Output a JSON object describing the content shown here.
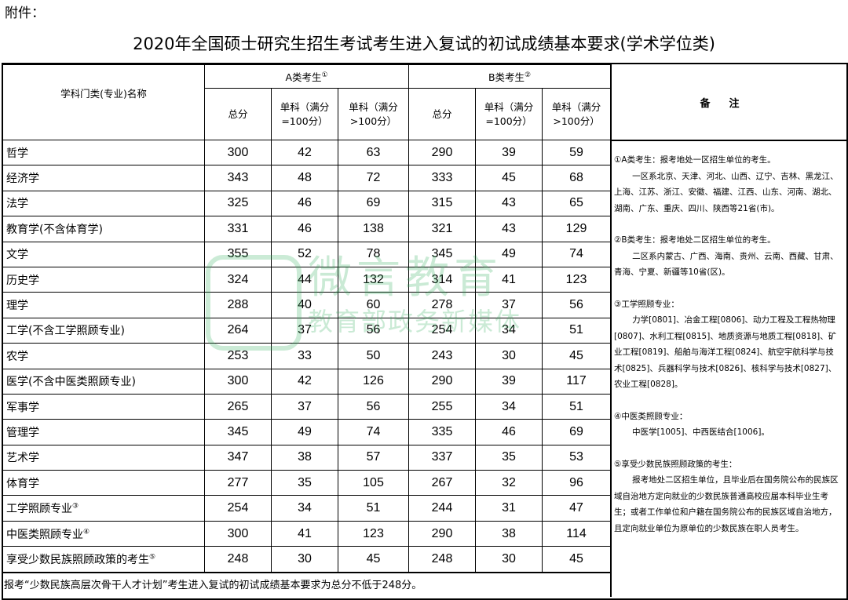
{
  "attachment_label": "附件：",
  "title": "2020年全国硕士研究生招生考试考生进入复试的初试成绩基本要求(学术学位类)",
  "header": {
    "subject": "学科门类(专业)名称",
    "group_a": "A类考生",
    "group_a_mark": "①",
    "group_b": "B类考生",
    "group_b_mark": "②",
    "total": "总分",
    "single_100": "单科（满分=100分）",
    "single_gt100": "单科（满分>100分）",
    "notes": "备注"
  },
  "rows": [
    {
      "name": "哲学",
      "mark": "",
      "a": [
        "300",
        "42",
        "63"
      ],
      "b": [
        "290",
        "39",
        "59"
      ]
    },
    {
      "name": "经济学",
      "mark": "",
      "a": [
        "343",
        "48",
        "72"
      ],
      "b": [
        "333",
        "45",
        "68"
      ]
    },
    {
      "name": "法学",
      "mark": "",
      "a": [
        "325",
        "46",
        "69"
      ],
      "b": [
        "315",
        "43",
        "65"
      ]
    },
    {
      "name": "教育学(不含体育学)",
      "mark": "",
      "a": [
        "331",
        "46",
        "138"
      ],
      "b": [
        "321",
        "43",
        "129"
      ]
    },
    {
      "name": "文学",
      "mark": "",
      "a": [
        "355",
        "52",
        "78"
      ],
      "b": [
        "345",
        "49",
        "74"
      ]
    },
    {
      "name": "历史学",
      "mark": "",
      "a": [
        "324",
        "44",
        "132"
      ],
      "b": [
        "314",
        "41",
        "123"
      ]
    },
    {
      "name": "理学",
      "mark": "",
      "a": [
        "288",
        "40",
        "60"
      ],
      "b": [
        "278",
        "37",
        "56"
      ]
    },
    {
      "name": "工学(不含工学照顾专业)",
      "mark": "",
      "a": [
        "264",
        "37",
        "56"
      ],
      "b": [
        "254",
        "34",
        "51"
      ]
    },
    {
      "name": "农学",
      "mark": "",
      "a": [
        "253",
        "33",
        "50"
      ],
      "b": [
        "243",
        "30",
        "45"
      ]
    },
    {
      "name": "医学(不含中医类照顾专业)",
      "mark": "",
      "a": [
        "300",
        "42",
        "126"
      ],
      "b": [
        "290",
        "39",
        "117"
      ]
    },
    {
      "name": "军事学",
      "mark": "",
      "a": [
        "265",
        "37",
        "56"
      ],
      "b": [
        "255",
        "34",
        "51"
      ]
    },
    {
      "name": "管理学",
      "mark": "",
      "a": [
        "345",
        "49",
        "74"
      ],
      "b": [
        "335",
        "46",
        "69"
      ]
    },
    {
      "name": "艺术学",
      "mark": "",
      "a": [
        "347",
        "38",
        "57"
      ],
      "b": [
        "337",
        "35",
        "53"
      ]
    },
    {
      "name": "体育学",
      "mark": "",
      "a": [
        "277",
        "35",
        "105"
      ],
      "b": [
        "267",
        "32",
        "96"
      ]
    },
    {
      "name": "工学照顾专业",
      "mark": "③",
      "a": [
        "254",
        "34",
        "51"
      ],
      "b": [
        "244",
        "31",
        "47"
      ]
    },
    {
      "name": "中医类照顾专业",
      "mark": "④",
      "a": [
        "300",
        "41",
        "123"
      ],
      "b": [
        "290",
        "38",
        "114"
      ]
    },
    {
      "name": "享受少数民族照顾政策的考生",
      "mark": "⑤",
      "a": [
        "248",
        "30",
        "45"
      ],
      "b": [
        "248",
        "30",
        "45"
      ]
    }
  ],
  "footer": "报考“少数民族高层次骨干人才计划”考生进入复试的初试成绩基本要求为总分不低于248分。",
  "notes": [
    {
      "head": "①A类考生：报考地处一区招生单位的考生。",
      "body": "一区系北京、天津、河北、山西、辽宁、吉林、黑龙江、上海、江苏、浙江、安徽、福建、江西、山东、河南、湖北、湖南、广东、重庆、四川、陕西等21省(市)。"
    },
    {
      "head": "②B类考生：报考地处二区招生单位的考生。",
      "body": "二区系内蒙古、广西、海南、贵州、云南、西藏、甘肃、青海、宁夏、新疆等10省(区)。"
    },
    {
      "head": "③工学照顾专业：",
      "body": "力学[0801]、冶金工程[0806]、动力工程及工程热物理[0807]、水利工程[0815]、地质资源与地质工程[0818]、矿业工程[0819]、船舶与海洋工程[0824]、航空宇航科学与技术[0825]、兵器科学与技术[0826]、核科学与技术[0827]、农业工程[0828]。"
    },
    {
      "head": "④中医类照顾专业：",
      "body": "中医学[1005]、中西医结合[1006]。"
    },
    {
      "head": "⑤享受少数民族照顾政策的考生：",
      "body": "报考地处二区招生单位，且毕业后在国务院公布的民族区域自治地方定向就业的少数民族普通高校应届本科毕业生考生；或者工作单位和户籍在国务院公布的民族区域自治地方，且定向就业单位为原单位的少数民族在职人员考生。"
    }
  ],
  "watermark": {
    "line1": "微言教育",
    "line2": "教育部政务新媒体",
    "color": "#2fae5a"
  }
}
